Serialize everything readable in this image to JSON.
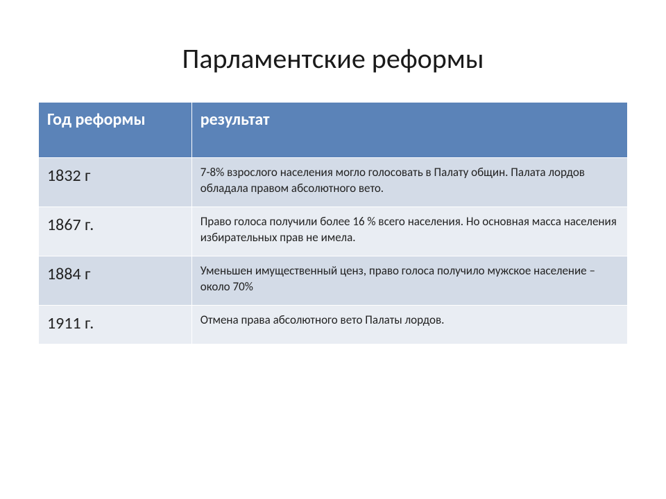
{
  "slide": {
    "title": "Парламентские реформы",
    "background_color": "#ffffff",
    "title_fontsize": 40,
    "title_color": "#1a1a1a"
  },
  "table": {
    "type": "table",
    "header_bg": "#5b83b8",
    "header_text_color": "#ffffff",
    "header_fontsize": 24,
    "row_colors": [
      "#d3dbe7",
      "#e9edf3"
    ],
    "border_color": "#ffffff",
    "year_fontsize": 24,
    "result_fontsize": 17,
    "columns": [
      {
        "key": "year",
        "label": "Год реформы",
        "width_pct": 26
      },
      {
        "key": "result",
        "label": "результат",
        "width_pct": 74
      }
    ],
    "rows": [
      {
        "year": "1832 г",
        "result": "7-8% взрослого населения могло голосовать в Палату общин. Палата лордов обладала правом абсолютного вето."
      },
      {
        "year": "1867 г.",
        "result": "Право голоса получили более 16 % всего населения. Но основная масса населения избирательных прав не имела."
      },
      {
        "year": "1884 г",
        "result": "Уменьшен имущественный ценз, право голоса получило мужское население – около 70%"
      },
      {
        "year": "1911 г.",
        "result": "Отмена права абсолютного вето Палаты лордов."
      }
    ]
  }
}
